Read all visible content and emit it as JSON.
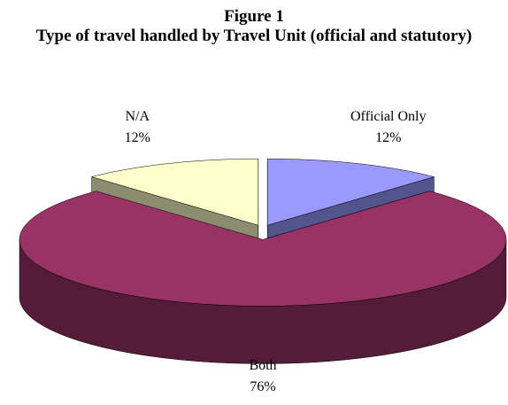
{
  "chart_data": {
    "type": "pie3d",
    "title": "Figure 1",
    "subtitle": "Type of travel handled by Travel Unit (official and statutory)",
    "categories": [
      "Official Only",
      "Both",
      "N/A"
    ],
    "values": [
      12,
      76,
      12
    ],
    "value_labels": [
      "12%",
      "76%",
      "12%"
    ],
    "colors": [
      "#9999ff",
      "#993366",
      "#ffffcc"
    ]
  }
}
